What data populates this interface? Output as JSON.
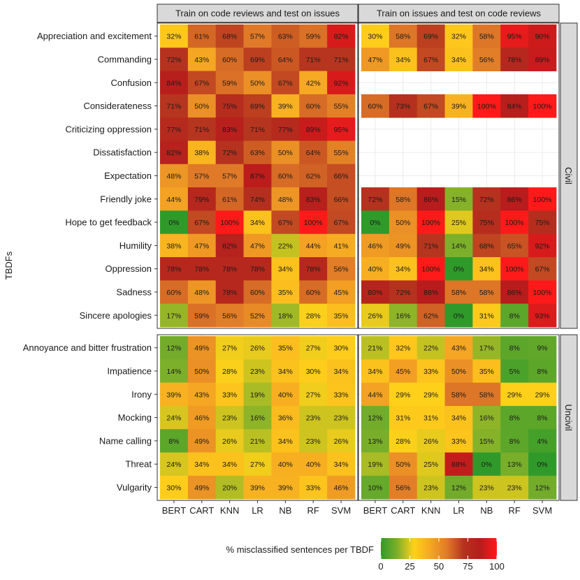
{
  "chart_data": {
    "type": "heatmap",
    "y_axis_title": "TBDFs",
    "x_categories": [
      "BERT",
      "CART",
      "KNN",
      "LR",
      "NB",
      "RF",
      "SVM"
    ],
    "column_facets": [
      "Train on code reviews and test on issues",
      "Train on issues and test on code reviews"
    ],
    "row_facets": [
      {
        "name": "Civil",
        "rows": [
          "Appreciation and excitement",
          "Commanding",
          "Confusion",
          "Considerateness",
          "Criticizing oppression",
          "Dissatisfaction",
          "Expectation",
          "Friendly joke",
          "Hope to get feedback",
          "Humility",
          "Oppression",
          "Sadness",
          "Sincere apologies"
        ],
        "values": [
          [
            [
              32,
              61,
              68,
              57,
              63,
              59,
              92
            ],
            [
              72,
              43,
              60,
              69,
              64,
              71,
              71
            ],
            [
              84,
              67,
              59,
              50,
              67,
              42,
              92
            ],
            [
              71,
              50,
              75,
              69,
              39,
              60,
              55
            ],
            [
              77,
              71,
              83,
              71,
              77,
              89,
              95
            ],
            [
              82,
              38,
              72,
              63,
              50,
              64,
              55
            ],
            [
              48,
              57,
              57,
              87,
              60,
              62,
              66
            ],
            [
              44,
              79,
              61,
              74,
              48,
              83,
              66
            ],
            [
              0,
              67,
              100,
              34,
              67,
              100,
              67
            ],
            [
              38,
              47,
              82,
              47,
              22,
              44,
              41
            ],
            [
              78,
              78,
              78,
              78,
              34,
              78,
              56
            ],
            [
              60,
              48,
              78,
              60,
              35,
              60,
              45
            ],
            [
              17,
              59,
              56,
              52,
              18,
              28,
              35
            ]
          ],
          [
            [
              30,
              58,
              69,
              32,
              58,
              95,
              90
            ],
            [
              47,
              34,
              67,
              34,
              56,
              78,
              89
            ],
            null,
            [
              60,
              73,
              67,
              39,
              100,
              84,
              100
            ],
            null,
            null,
            null,
            [
              72,
              58,
              86,
              15,
              72,
              86,
              100
            ],
            [
              0,
              50,
              100,
              25,
              75,
              100,
              75
            ],
            [
              46,
              49,
              71,
              14,
              68,
              65,
              92
            ],
            [
              40,
              34,
              100,
              0,
              34,
              100,
              67
            ],
            [
              80,
              72,
              86,
              58,
              58,
              86,
              100
            ],
            [
              26,
              16,
              62,
              0,
              31,
              8,
              93
            ]
          ]
        ]
      },
      {
        "name": "Uncivil",
        "rows": [
          "Annoyance and bitter frustration",
          "Impatience",
          "Irony",
          "Mocking",
          "Name calling",
          "Threat",
          "Vulgarity"
        ],
        "values": [
          [
            [
              12,
              49,
              27,
              26,
              35,
              27,
              30
            ],
            [
              14,
              50,
              28,
              23,
              34,
              30,
              34
            ],
            [
              39,
              43,
              33,
              19,
              40,
              27,
              33
            ],
            [
              24,
              46,
              23,
              16,
              36,
              23,
              23
            ],
            [
              8,
              49,
              26,
              21,
              34,
              23,
              26
            ],
            [
              24,
              34,
              34,
              27,
              40,
              40,
              34
            ],
            [
              30,
              49,
              20,
              39,
              39,
              33,
              46
            ]
          ],
          [
            [
              21,
              32,
              22,
              43,
              17,
              8,
              9
            ],
            [
              34,
              45,
              33,
              50,
              35,
              5,
              8
            ],
            [
              44,
              29,
              29,
              58,
              58,
              29,
              29
            ],
            [
              12,
              31,
              31,
              34,
              16,
              8,
              8
            ],
            [
              13,
              28,
              26,
              33,
              15,
              8,
              4
            ],
            [
              19,
              50,
              25,
              88,
              0,
              13,
              0
            ],
            [
              10,
              56,
              23,
              12,
              23,
              23,
              12
            ]
          ]
        ]
      }
    ],
    "legend": {
      "title": "% misclassified sentences per TBDF",
      "ticks": [
        0,
        25,
        50,
        75,
        100
      ],
      "range": [
        0,
        100
      ],
      "placement": "bottom"
    },
    "color_stops": [
      "#2f9a2a",
      "#7fb02a",
      "#ffd11a",
      "#f5a623",
      "#e07a28",
      "#b5331e",
      "#b71c1c",
      "#ff1a1a"
    ]
  }
}
